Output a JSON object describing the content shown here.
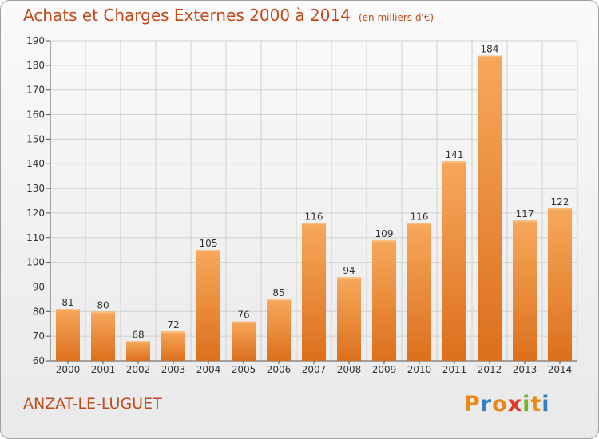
{
  "title": "Achats et Charges Externes 2000 à 2014",
  "unit_label": "(en milliers d'€)",
  "commune": "ANZAT-LE-LUGUET",
  "logo": {
    "text": "Proxiti",
    "letters": [
      "P",
      "r",
      "o",
      "x",
      "i",
      "t",
      "i"
    ],
    "colors": [
      "#e8891a",
      "#2f7fc1",
      "#e8891a",
      "#e23b2e",
      "#7ab32e",
      "#e8891a",
      "#2f7fc1"
    ]
  },
  "colors": {
    "bar": "#ee8a35",
    "bar_light": "#f6a55a",
    "bar_dark": "#d86e1c",
    "text_accent": "#c04a1a",
    "grid": "#d0d0d0"
  },
  "chart_data": {
    "type": "bar",
    "title": "Achats et Charges Externes 2000 à 2014",
    "subtitle": "(en milliers d'€)",
    "categories": [
      "2000",
      "2001",
      "2002",
      "2003",
      "2004",
      "2005",
      "2006",
      "2007",
      "2008",
      "2009",
      "2010",
      "2011",
      "2012",
      "2013",
      "2014"
    ],
    "values": [
      81,
      80,
      68,
      72,
      105,
      76,
      85,
      116,
      94,
      109,
      116,
      141,
      184,
      117,
      122
    ],
    "ylim": [
      60,
      190
    ],
    "yticks": [
      60,
      70,
      80,
      90,
      100,
      110,
      120,
      130,
      140,
      150,
      160,
      170,
      180,
      190
    ],
    "grid": true,
    "xlabel": "",
    "ylabel": ""
  }
}
